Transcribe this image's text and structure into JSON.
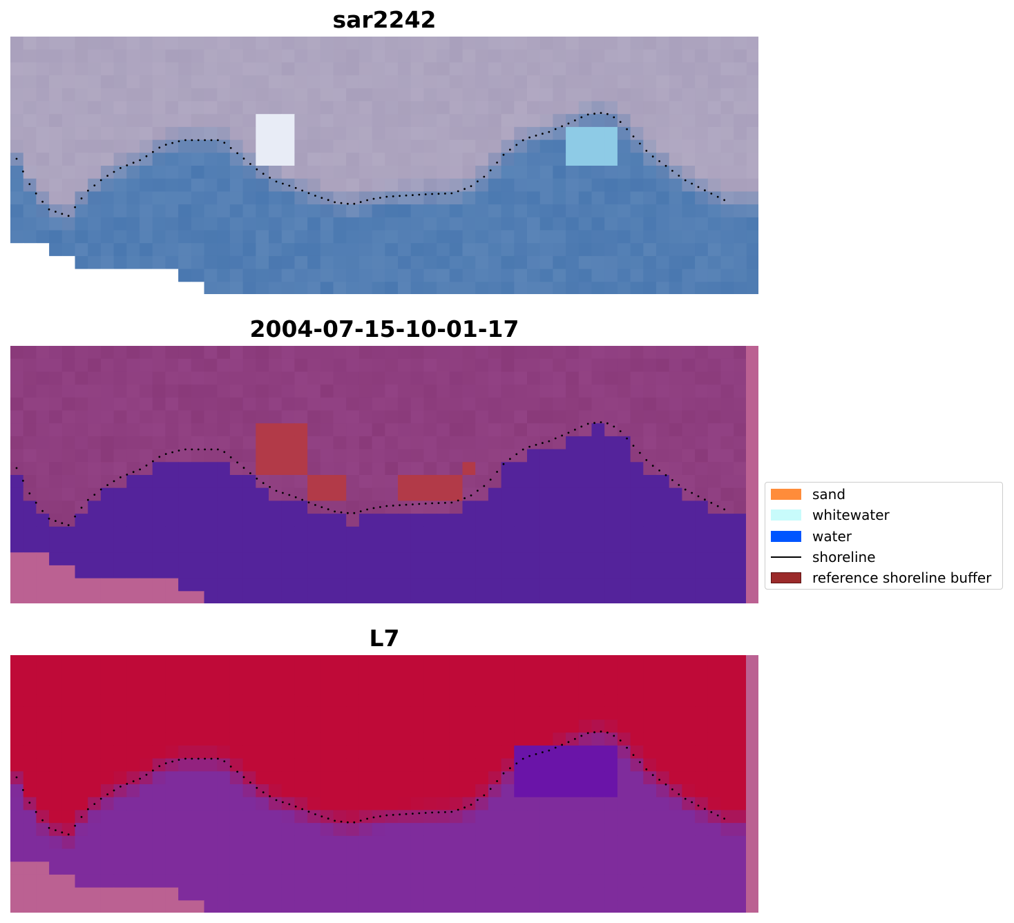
{
  "panels": [
    {
      "title": "sar2242"
    },
    {
      "title": "2004-07-15-10-01-17"
    },
    {
      "title": "L7"
    }
  ],
  "legend": {
    "items": [
      {
        "label": "sand",
        "color": "#ff8c3a"
      },
      {
        "label": "whitewater",
        "color": "#c8fbfb"
      },
      {
        "label": "water",
        "color": "#0055ff"
      },
      {
        "label": "shoreline",
        "color": "#000000"
      },
      {
        "label": "reference shoreline buffer",
        "color": "#9b2a2a"
      }
    ]
  },
  "colors": {
    "rgb_water": "#4a78b0",
    "rgb_land": "#a9a0bc",
    "class_water": "#54239b",
    "class_land": "#8a3a7a",
    "class_buffer": "#b23a48",
    "nodata_pink": "#bb6192",
    "index_land": "#bf0a38",
    "index_water": "#7f2c9c"
  }
}
